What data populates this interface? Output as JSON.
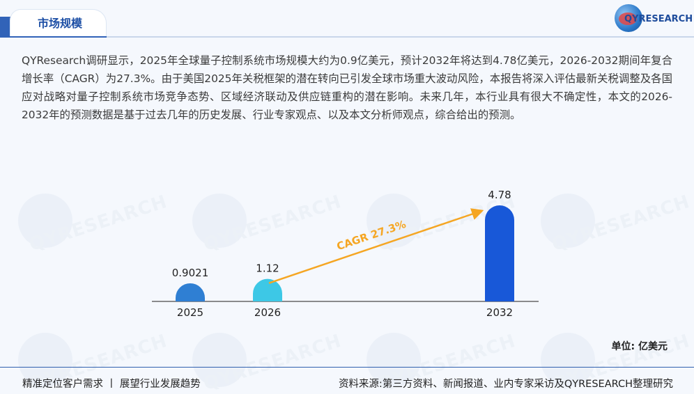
{
  "header": {
    "title": "市场规模",
    "logo_text": "QYRESEARCH"
  },
  "paragraph": "QYResearch调研显示，2025年全球量子控制系统市场规模大约为0.9亿美元，预计2032年将达到4.78亿美元，2026-2032期间年复合增长率（CAGR）为27.3%。由于美国2025年关税框架的潜在转向已引发全球市场重大波动风险，本报告将深入评估最新关税调整及各国应对战略对量子控制系统市场竞争态势、区域经济联动及供应链重构的潜在影响。未来几年，本行业具有很大不确定性，本文的2026-2032年的预测数据是基于过去几年的历史发展、行业专家观点、以及本文分析师观点，综合给出的预测。",
  "chart_data": {
    "type": "bar",
    "categories": [
      "2025",
      "2026",
      "2032"
    ],
    "values": [
      0.9021,
      1.12,
      4.78
    ],
    "value_labels": [
      "0.9021",
      "1.12",
      "4.78"
    ],
    "bar_colors": [
      "#2f7fd3",
      "#3dc8e6",
      "#1858d8"
    ],
    "annotation": "CAGR 27.3%",
    "annotation_color": "#f5a623",
    "unit": "单位: 亿美元",
    "title": "",
    "xlabel": "",
    "ylabel": ""
  },
  "watermark": "QYRESEARCH",
  "footer": {
    "left": "精准定位客户需求 丨 展望行业发展趋势",
    "right": "资料来源:第三方资料、新闻报道、业内专家采访及QYRESEARCH整理研究"
  },
  "colors": {
    "accent": "#3163b8",
    "title": "#1d4fa5"
  }
}
